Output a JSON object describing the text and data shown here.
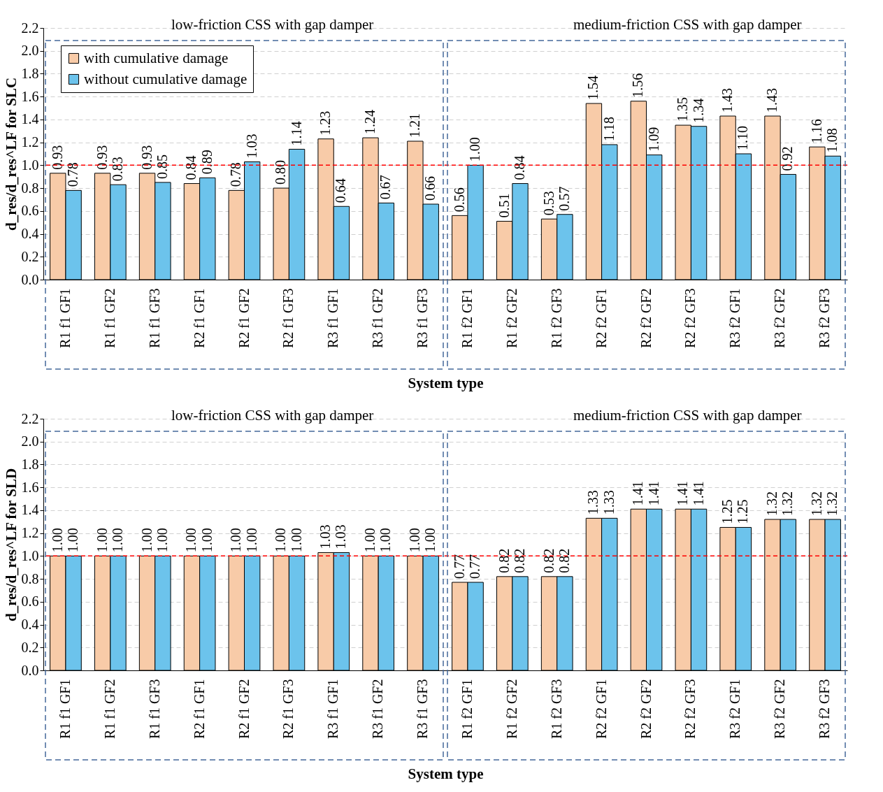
{
  "chart_data": [
    {
      "type": "bar",
      "ylabel": "d_res/d_res^LF for SLC",
      "xlabel": "System type",
      "categories": [
        "R1 f1 GF1",
        "R1 f1 GF2",
        "R1 f1 GF3",
        "R2 f1 GF1",
        "R2 f1 GF2",
        "R2 f1 GF3",
        "R3 f1 GF1",
        "R3 f1 GF2",
        "R3 f1 GF3",
        "R1 f2 GF1",
        "R1 f2 GF2",
        "R1 f2 GF3",
        "R2 f2 GF1",
        "R2 f2 GF2",
        "R2 f2 GF3",
        "R3 f2 GF1",
        "R3 f2 GF2",
        "R3 f2 GF3"
      ],
      "series": [
        {
          "name": "with cumulative damage",
          "color": "#f8cba8",
          "values": [
            0.93,
            0.93,
            0.93,
            0.84,
            0.78,
            0.8,
            1.23,
            1.24,
            1.21,
            0.56,
            0.51,
            0.53,
            1.54,
            1.56,
            1.35,
            1.43,
            1.43,
            1.16
          ],
          "value_labels": [
            "0.93",
            "0.93",
            "0.93",
            "0.84",
            "0.78",
            "0.80",
            "1.23",
            "1.24",
            "1.21",
            "0.56",
            "0.51",
            "0.53",
            "1.54",
            "1.56",
            "1.35",
            "1.43",
            "1.43",
            "1.16"
          ]
        },
        {
          "name": "without cumulative damage",
          "color": "#6cc3ec",
          "values": [
            0.78,
            0.83,
            0.85,
            0.89,
            1.03,
            1.14,
            0.64,
            0.67,
            0.66,
            1.0,
            0.84,
            0.57,
            1.18,
            1.09,
            1.34,
            1.1,
            0.92,
            1.08
          ],
          "value_labels": [
            "0.78",
            "0.83",
            "0.85",
            "0.89",
            "1.03",
            "1.14",
            "0.64",
            "0.67",
            "0.66",
            "1.00",
            "0.84",
            "0.57",
            "1.18",
            "1.09",
            "1.34",
            "1.10",
            "0.92",
            "1.08"
          ]
        }
      ],
      "ylim": [
        0,
        2.2
      ],
      "yticks": [
        {
          "value": 0,
          "label": "0.0"
        },
        {
          "value": 0.2,
          "label": "0.2"
        },
        {
          "value": 0.4,
          "label": "0.4"
        },
        {
          "value": 0.6,
          "label": "0.6"
        },
        {
          "value": 0.8,
          "label": "0.8"
        },
        {
          "value": 1,
          "label": "1.0"
        },
        {
          "value": 1.2,
          "label": "1.2"
        },
        {
          "value": 1.4,
          "label": "1.4"
        },
        {
          "value": 1.6,
          "label": "1.6"
        },
        {
          "value": 1.8,
          "label": "1.8"
        },
        {
          "value": 2,
          "label": "2.0"
        },
        {
          "value": 2.2,
          "label": "2.2"
        }
      ],
      "grid": "y",
      "legend": "top left",
      "ref_lines": [
        {
          "axis": "y",
          "value": 1,
          "color": "#ff0000",
          "line_style": "dashed"
        }
      ],
      "annotations": [
        "low-friction CSS with gap damper",
        "medium-friction CSS with gap damper"
      ]
    },
    {
      "type": "bar",
      "ylabel": "d_res/d_res^LF for SLD",
      "xlabel": "System type",
      "categories": [
        "R1 f1 GF1",
        "R1 f1 GF2",
        "R1 f1 GF3",
        "R2 f1 GF1",
        "R2 f1 GF2",
        "R2 f1 GF3",
        "R3 f1 GF1",
        "R3 f1 GF2",
        "R3 f1 GF3",
        "R1 f2 GF1",
        "R1 f2 GF2",
        "R1 f2 GF3",
        "R2 f2 GF1",
        "R2 f2 GF2",
        "R2 f2 GF3",
        "R3 f2 GF1",
        "R3 f2 GF2",
        "R3 f2 GF3"
      ],
      "series": [
        {
          "name": "with cumulative damage",
          "color": "#f8cba8",
          "values": [
            1.0,
            1.0,
            1.0,
            1.0,
            1.0,
            1.0,
            1.03,
            1.0,
            1.0,
            0.77,
            0.82,
            0.82,
            1.33,
            1.41,
            1.41,
            1.25,
            1.32,
            1.32
          ],
          "value_labels": [
            "1.00",
            "1.00",
            "1.00",
            "1.00",
            "1.00",
            "1.00",
            "1.03",
            "1.00",
            "1.00",
            "0.77",
            "0.82",
            "0.82",
            "1.33",
            "1.41",
            "1.41",
            "1.25",
            "1.32",
            "1.32"
          ]
        },
        {
          "name": "without cumulative damage",
          "color": "#6cc3ec",
          "values": [
            1.0,
            1.0,
            1.0,
            1.0,
            1.0,
            1.0,
            1.03,
            1.0,
            1.0,
            0.77,
            0.82,
            0.82,
            1.33,
            1.41,
            1.41,
            1.25,
            1.32,
            1.32
          ],
          "value_labels": [
            "1.00",
            "1.00",
            "1.00",
            "1.00",
            "1.00",
            "1.00",
            "1.03",
            "1.00",
            "1.00",
            "0.77",
            "0.82",
            "0.82",
            "1.33",
            "1.41",
            "1.41",
            "1.25",
            "1.32",
            "1.32"
          ]
        }
      ],
      "ylim": [
        0,
        2.2
      ],
      "yticks": [
        {
          "value": 0,
          "label": "0.0"
        },
        {
          "value": 0.2,
          "label": "0.2"
        },
        {
          "value": 0.4,
          "label": "0.4"
        },
        {
          "value": 0.6,
          "label": "0.6"
        },
        {
          "value": 0.8,
          "label": "0.8"
        },
        {
          "value": 1,
          "label": "1.0"
        },
        {
          "value": 1.2,
          "label": "1.2"
        },
        {
          "value": 1.4,
          "label": "1.4"
        },
        {
          "value": 1.6,
          "label": "1.6"
        },
        {
          "value": 1.8,
          "label": "1.8"
        },
        {
          "value": 2,
          "label": "2.0"
        },
        {
          "value": 2.2,
          "label": "2.2"
        }
      ],
      "grid": "y",
      "legend": "top left",
      "ref_lines": [
        {
          "axis": "y",
          "value": 1,
          "color": "#ff0000",
          "line_style": "dashed"
        }
      ],
      "annotations": [
        "low-friction CSS with gap damper",
        "medium-friction CSS with gap damper"
      ]
    }
  ]
}
